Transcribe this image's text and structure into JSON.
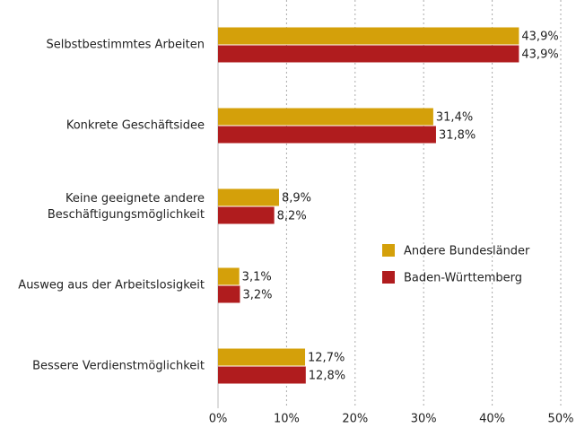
{
  "chart_data": {
    "type": "hbar",
    "categories": [
      "Selbstbestimmtes Arbeiten",
      "Konkrete Geschäftsidee",
      "Keine geeignete andere\nBeschäftigungsmöglichkeit",
      "Ausweg aus der Arbeitslosigkeit",
      "Bessere Verdienstmöglichkeit"
    ],
    "series": [
      {
        "name": "Andere Bundesländer",
        "color": "#d4a00a",
        "values": [
          43.9,
          31.4,
          8.9,
          3.1,
          12.7
        ],
        "value_labels": [
          "43,9%",
          "31,4%",
          "8,9%",
          "3,1%",
          "12,7%"
        ]
      },
      {
        "name": "Baden-Württemberg",
        "color": "#b01c1e",
        "values": [
          43.9,
          31.8,
          8.2,
          3.2,
          12.8
        ],
        "value_labels": [
          "43,9%",
          "31,8%",
          "8,2%",
          "3,2%",
          "12,8%"
        ]
      }
    ],
    "xlim": [
      0,
      50
    ],
    "xticks": [
      {
        "value": 0,
        "label": "0%"
      },
      {
        "value": 10,
        "label": "10%"
      },
      {
        "value": 20,
        "label": "20%"
      },
      {
        "value": 30,
        "label": "30%"
      },
      {
        "value": 40,
        "label": "40%"
      },
      {
        "value": 50,
        "label": "50%"
      }
    ],
    "grid": true
  }
}
